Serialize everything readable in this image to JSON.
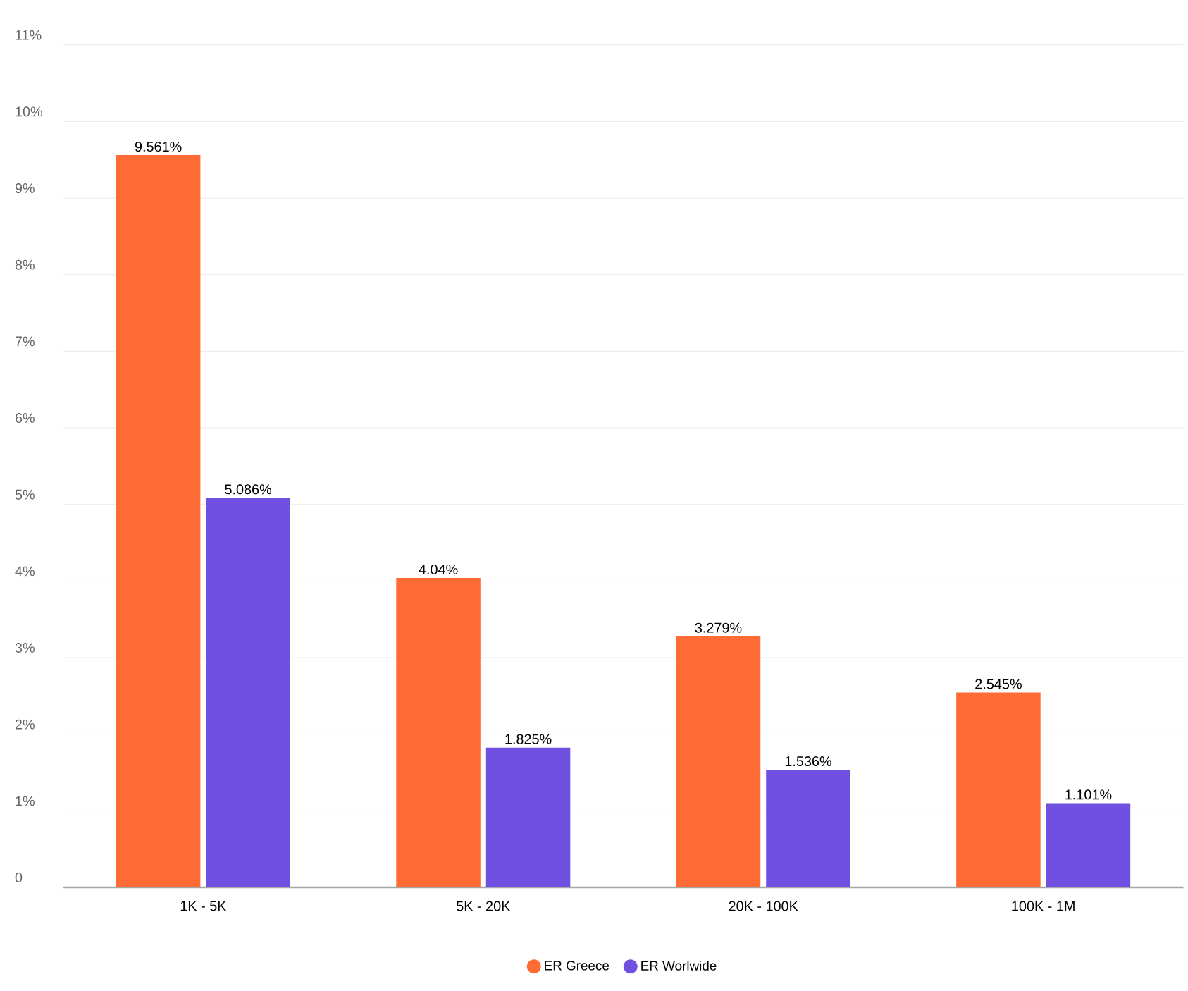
{
  "chart_data": {
    "type": "bar",
    "categories": [
      "1K - 5K",
      "5K - 20K",
      "20K - 100K",
      "100K - 1M"
    ],
    "series": [
      {
        "name": "ER Greece",
        "color": "#ff6b35",
        "values": [
          9.561,
          4.04,
          3.279,
          2.545
        ],
        "value_labels": [
          "9.561%",
          "4.04%",
          "3.279%",
          "2.545%"
        ]
      },
      {
        "name": "ER Worlwide",
        "color": "#7050e0",
        "values": [
          5.086,
          1.825,
          1.536,
          1.101
        ],
        "value_labels": [
          "5.086%",
          "1.825%",
          "1.536%",
          "1.101%"
        ]
      }
    ],
    "ylim": [
      0,
      11
    ],
    "yticks": [
      0,
      {
        "value": 1,
        "label": "1%"
      },
      {
        "value": 2,
        "label": "2%"
      },
      {
        "value": 3,
        "label": "3%"
      },
      {
        "value": 4,
        "label": "4%"
      },
      {
        "value": 5,
        "label": "5%"
      },
      {
        "value": 6,
        "label": "6%"
      },
      {
        "value": 7,
        "label": "7%"
      },
      {
        "value": 8,
        "label": "8%"
      },
      {
        "value": 9,
        "label": "9%"
      },
      {
        "value": 10,
        "label": "10%"
      },
      {
        "value": 11,
        "label": "11%"
      }
    ],
    "grid": "y",
    "legend": "bottom"
  }
}
